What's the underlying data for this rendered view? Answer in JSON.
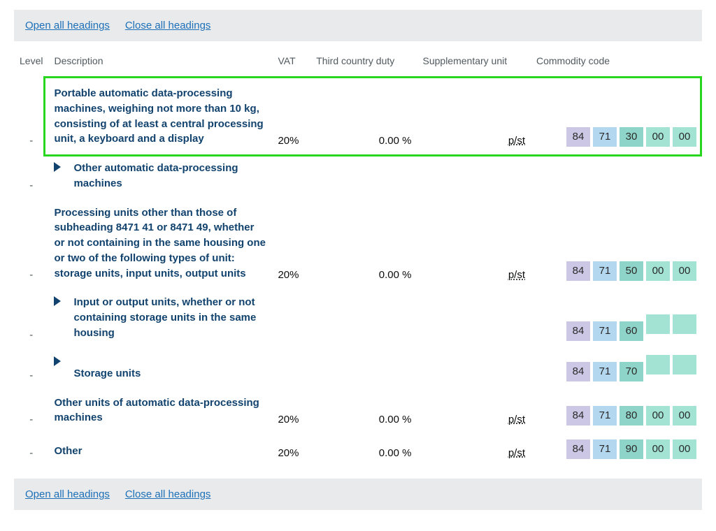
{
  "links": {
    "open_all": "Open all headings",
    "close_all": "Close all headings"
  },
  "headers": {
    "level": "Level",
    "description": "Description",
    "vat": "VAT",
    "duty": "Third country duty",
    "supp": "Supplementary unit",
    "code": "Commodity code"
  },
  "supp_unit": "p/st",
  "highlight": {
    "border_color": "#29d61f"
  },
  "code_colors": [
    "#ccc7e4",
    "#b4d7f0",
    "#8fd4c8",
    "#a2e3d4",
    "#a2e3d4"
  ],
  "rows": [
    {
      "level": "-",
      "indent": false,
      "expandable": false,
      "highlight": true,
      "description": "Portable automatic data-processing machines, weighing not more than 10 kg, consisting of at least a central processing unit, a keyboard and a display",
      "vat": "20%",
      "duty": "0.00 %",
      "supp": "p/st",
      "code": [
        "84",
        "71",
        "30",
        "00",
        "00"
      ]
    },
    {
      "level": "-",
      "indent": true,
      "expandable": true,
      "description": "Other automatic data-processing machines",
      "vat": "",
      "duty": "",
      "supp": "",
      "code": []
    },
    {
      "level": "-",
      "indent": false,
      "expandable": false,
      "description": "Processing units other than those of subheading 8471 41 or 8471 49, whether or not containing in the same housing one or two of the following types of unit: storage units, input units, output units",
      "vat": "20%",
      "duty": "0.00 %",
      "supp": "p/st",
      "code": [
        "84",
        "71",
        "50",
        "00",
        "00"
      ]
    },
    {
      "level": "-",
      "indent": true,
      "expandable": true,
      "description": "Input or output units, whether or not containing storage units in the same housing",
      "vat": "",
      "duty": "",
      "supp": "",
      "code": [
        "84",
        "71",
        "60",
        "",
        ""
      ]
    },
    {
      "level": "-",
      "indent": true,
      "expandable": true,
      "description": "Storage units",
      "vat": "",
      "duty": "",
      "supp": "",
      "code": [
        "84",
        "71",
        "70",
        "",
        ""
      ]
    },
    {
      "level": "-",
      "indent": false,
      "expandable": false,
      "description": "Other units of automatic data-processing machines",
      "vat": "20%",
      "duty": "0.00 %",
      "supp": "p/st",
      "code": [
        "84",
        "71",
        "80",
        "00",
        "00"
      ]
    },
    {
      "level": "-",
      "indent": false,
      "expandable": false,
      "description": "Other",
      "vat": "20%",
      "duty": "0.00 %",
      "supp": "p/st",
      "code": [
        "84",
        "71",
        "90",
        "00",
        "00"
      ]
    }
  ]
}
